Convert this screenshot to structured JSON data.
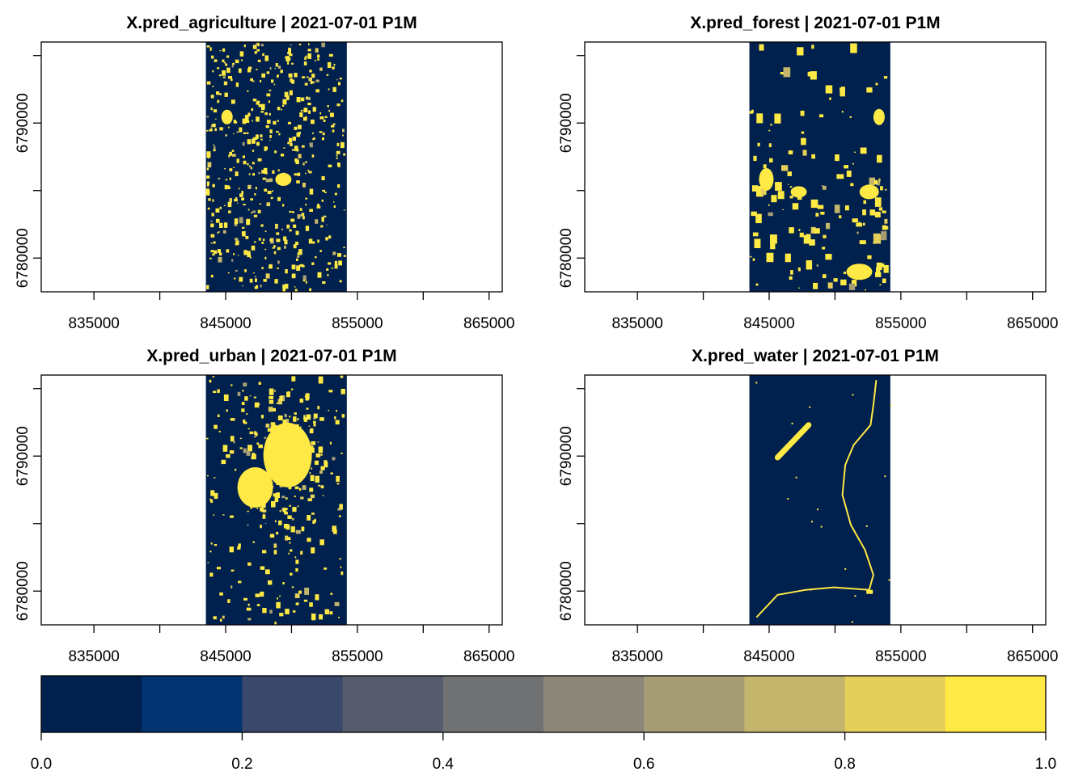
{
  "chart_data": {
    "type": "heatmap",
    "panels": [
      {
        "title": "X.pred_agriculture | 2021-07-01 P1M",
        "xticks": [
          835000,
          845000,
          855000,
          865000
        ],
        "xlim": [
          831000,
          866000
        ],
        "yticks": [
          6780000,
          6790000
        ],
        "ylim": [
          6777500,
          6796000
        ],
        "raster_extent_x": [
          843500,
          854200
        ],
        "pattern": "agriculture"
      },
      {
        "title": "X.pred_forest | 2021-07-01 P1M",
        "xticks": [
          835000,
          845000,
          855000,
          865000
        ],
        "xlim": [
          831000,
          866000
        ],
        "yticks": [
          6780000,
          6790000
        ],
        "ylim": [
          6777500,
          6796000
        ],
        "raster_extent_x": [
          843500,
          854200
        ],
        "pattern": "forest"
      },
      {
        "title": "X.pred_urban | 2021-07-01 P1M",
        "xticks": [
          835000,
          845000,
          855000,
          865000
        ],
        "xlim": [
          831000,
          866000
        ],
        "yticks": [
          6780000,
          6790000
        ],
        "ylim": [
          6777500,
          6796000
        ],
        "raster_extent_x": [
          843500,
          854200
        ],
        "pattern": "urban"
      },
      {
        "title": "X.pred_water | 2021-07-01 P1M",
        "xticks": [
          835000,
          845000,
          855000,
          865000
        ],
        "xlim": [
          831000,
          866000
        ],
        "yticks": [
          6780000,
          6790000
        ],
        "ylim": [
          6777500,
          6796000
        ],
        "raster_extent_x": [
          843500,
          854200
        ],
        "pattern": "water"
      }
    ],
    "colorbar": {
      "breaks": [
        0,
        0.1,
        0.2,
        0.3,
        0.4,
        0.5,
        0.6,
        0.7,
        0.8,
        0.9,
        1.0
      ],
      "tick_labels": [
        "0.0",
        "0.2",
        "0.4",
        "0.6",
        "0.8",
        "1.0"
      ],
      "colors": [
        "#00204d",
        "#00336f",
        "#39486b",
        "#575c6d",
        "#707173",
        "#8a8779",
        "#a69d75",
        "#c4b56c",
        "#e4cf5b",
        "#ffe945"
      ]
    }
  }
}
